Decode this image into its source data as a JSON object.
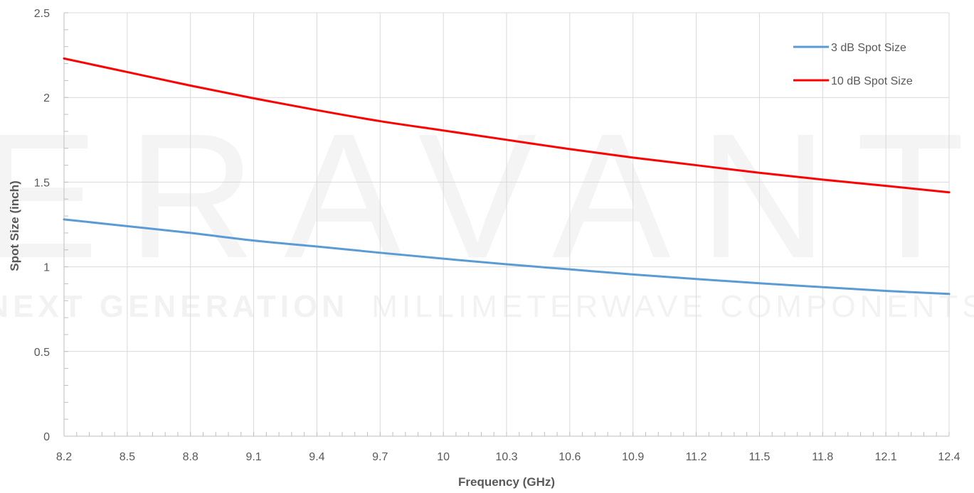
{
  "watermark": {
    "logo_text": "ERAVANT",
    "tagline_bold": "NEXT GENERATION",
    "tagline_light": "MILLIMETERWAVE COMPONENTS"
  },
  "chart_data": {
    "type": "line",
    "title": "",
    "xlabel": "Frequency (GHz)",
    "ylabel": "Spot Size (inch)",
    "xlim": [
      8.2,
      12.4
    ],
    "ylim": [
      0,
      2.5
    ],
    "x_ticks": [
      "8.2",
      "8.5",
      "8.8",
      "9.1",
      "9.4",
      "9.7",
      "10",
      "10.3",
      "10.6",
      "10.9",
      "11.2",
      "11.5",
      "11.8",
      "12.1",
      "12.4"
    ],
    "y_ticks": [
      "0",
      "0.5",
      "1",
      "1.5",
      "2",
      "2.5"
    ],
    "grid": true,
    "legend_position": "top-right",
    "series": [
      {
        "name": "3 dB Spot Size",
        "color": "#5b9bd5",
        "x": [
          8.2,
          8.5,
          8.8,
          9.1,
          9.4,
          9.7,
          10.0,
          10.3,
          10.6,
          10.9,
          11.2,
          11.5,
          11.8,
          12.1,
          12.4
        ],
        "y": [
          1.28,
          1.24,
          1.2,
          1.155,
          1.12,
          1.083,
          1.048,
          1.015,
          0.985,
          0.955,
          0.928,
          0.903,
          0.88,
          0.858,
          0.84
        ]
      },
      {
        "name": "10 dB Spot Size",
        "color": "#ff0000",
        "x": [
          8.2,
          8.5,
          8.8,
          9.1,
          9.4,
          9.7,
          10.0,
          10.3,
          10.6,
          10.9,
          11.2,
          11.5,
          11.8,
          12.1,
          12.4
        ],
        "y": [
          2.23,
          2.15,
          2.07,
          1.995,
          1.925,
          1.86,
          1.805,
          1.75,
          1.695,
          1.645,
          1.6,
          1.555,
          1.515,
          1.478,
          1.44
        ]
      }
    ]
  }
}
